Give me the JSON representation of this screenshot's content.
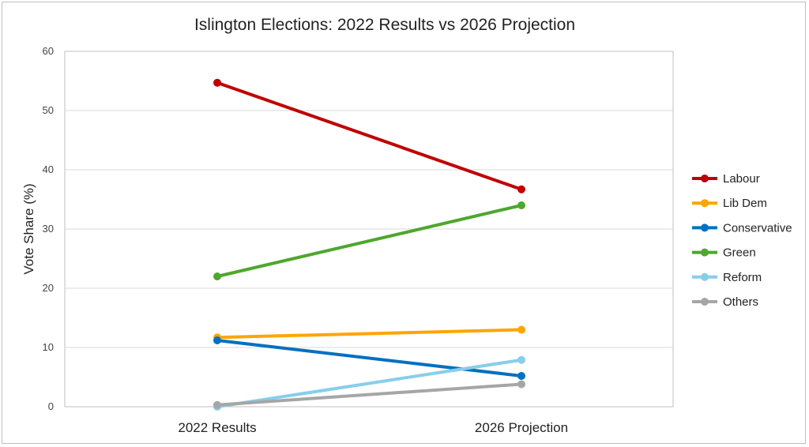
{
  "chart_data": {
    "type": "line",
    "title": "Islington Elections: 2022 Results vs 2026 Projection",
    "xlabel": "",
    "ylabel": "Vote Share (%)",
    "categories": [
      "2022 Results",
      "2026 Projection"
    ],
    "ylim": [
      0,
      60
    ],
    "yticks": [
      "0",
      "10",
      "20",
      "30",
      "40",
      "50",
      "60"
    ],
    "grid": true,
    "legend_position": "right",
    "series": [
      {
        "name": "Labour",
        "values": [
          54.7,
          36.7
        ],
        "color": "#c00000"
      },
      {
        "name": "Lib Dem",
        "values": [
          11.7,
          13.0
        ],
        "color": "#ffa500"
      },
      {
        "name": "Conservative",
        "values": [
          11.2,
          5.2
        ],
        "color": "#0070c0"
      },
      {
        "name": "Green",
        "values": [
          22.0,
          34.0
        ],
        "color": "#4ea72e"
      },
      {
        "name": "Reform",
        "values": [
          0.0,
          7.9
        ],
        "color": "#87ceeb"
      },
      {
        "name": "Others",
        "values": [
          0.3,
          3.8
        ],
        "color": "#a6a6a6"
      }
    ]
  }
}
